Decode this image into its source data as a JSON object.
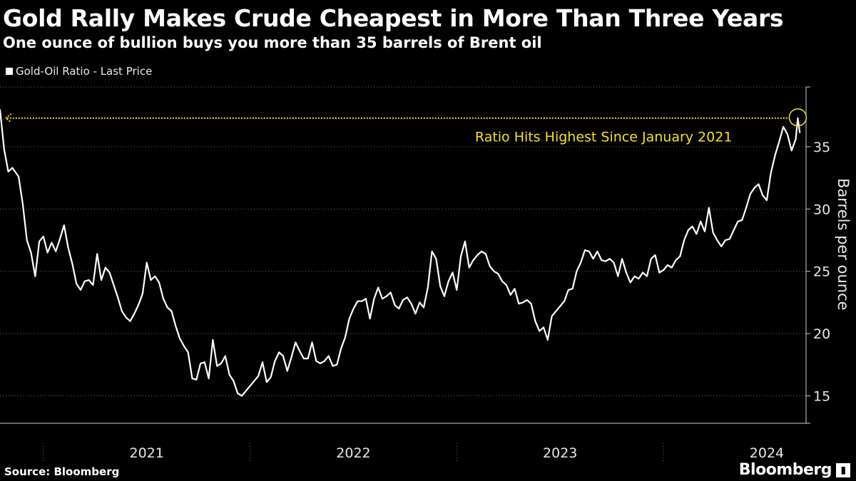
{
  "header": {
    "title": "Gold Rally Makes Crude Cheapest in More Than Three Years",
    "subtitle": "One ounce of bullion buys you more than 35 barrels of Brent oil"
  },
  "legend": {
    "label": "Gold-Oil Ratio - Last Price"
  },
  "footer": {
    "source": "Source: Bloomberg",
    "brand": "Bloomberg"
  },
  "colors": {
    "line": "#ffffff",
    "accent": "#f5e11c",
    "background": "#000000"
  },
  "chart_data": {
    "type": "line",
    "title": "Gold Rally Makes Crude Cheapest in More Than Three Years",
    "subtitle": "One ounce of bullion buys you more than 35 barrels of Brent oil",
    "xlabel": "",
    "ylabel": "Barrels per ounce",
    "ylim": [
      12.8,
      39.8
    ],
    "xlim": [
      2020.29,
      2024.19
    ],
    "yticks": [
      15,
      20,
      25,
      30,
      35
    ],
    "xtick_labels": [
      {
        "label": "2021",
        "at": 2021.0
      },
      {
        "label": "2022",
        "at": 2022.0
      },
      {
        "label": "2023",
        "at": 2023.0
      },
      {
        "label": "2024",
        "at": 2024.0
      }
    ],
    "year_boundaries": [
      2020.5,
      2021.5,
      2022.5,
      2023.5
    ],
    "legend": [
      "Gold-Oil Ratio - Last Price"
    ],
    "legend_position": "top-left",
    "grid": true,
    "annotation": {
      "text": "Ratio Hits Highest Since January 2021",
      "reference_value": 37.3,
      "reference_from_x": 2020.31,
      "highlight_x": 2024.15
    },
    "series": [
      {
        "name": "Gold-Oil Ratio - Last Price",
        "x": [
          2020.29,
          2020.31,
          2020.33,
          2020.35,
          2020.38,
          2020.4,
          2020.42,
          2020.44,
          2020.46,
          2020.48,
          2020.5,
          2020.52,
          2020.54,
          2020.56,
          2020.58,
          2020.6,
          2020.62,
          2020.64,
          2020.66,
          2020.68,
          2020.7,
          2020.72,
          2020.74,
          2020.76,
          2020.78,
          2020.8,
          2020.82,
          2020.84,
          2020.86,
          2020.88,
          2020.9,
          2020.92,
          2020.94,
          2020.96,
          2020.98,
          2021.0,
          2021.02,
          2021.04,
          2021.06,
          2021.08,
          2021.1,
          2021.12,
          2021.14,
          2021.16,
          2021.18,
          2021.2,
          2021.22,
          2021.24,
          2021.26,
          2021.28,
          2021.3,
          2021.32,
          2021.34,
          2021.36,
          2021.38,
          2021.4,
          2021.42,
          2021.44,
          2021.46,
          2021.48,
          2021.5,
          2021.52,
          2021.54,
          2021.56,
          2021.58,
          2021.6,
          2021.62,
          2021.64,
          2021.66,
          2021.68,
          2021.7,
          2021.72,
          2021.74,
          2021.76,
          2021.78,
          2021.8,
          2021.82,
          2021.84,
          2021.86,
          2021.88,
          2021.9,
          2021.92,
          2021.94,
          2021.96,
          2021.98,
          2022.0,
          2022.02,
          2022.04,
          2022.06,
          2022.08,
          2022.1,
          2022.12,
          2022.14,
          2022.16,
          2022.18,
          2022.2,
          2022.22,
          2022.24,
          2022.26,
          2022.28,
          2022.3,
          2022.32,
          2022.34,
          2022.36,
          2022.38,
          2022.4,
          2022.42,
          2022.44,
          2022.46,
          2022.48,
          2022.5,
          2022.52,
          2022.54,
          2022.56,
          2022.58,
          2022.6,
          2022.62,
          2022.64,
          2022.66,
          2022.68,
          2022.7,
          2022.72,
          2022.74,
          2022.76,
          2022.78,
          2022.8,
          2022.82,
          2022.84,
          2022.86,
          2022.88,
          2022.9,
          2022.92,
          2022.94,
          2022.96,
          2022.98,
          2023.0,
          2023.02,
          2023.04,
          2023.06,
          2023.08,
          2023.1,
          2023.12,
          2023.14,
          2023.16,
          2023.18,
          2023.2,
          2023.22,
          2023.24,
          2023.26,
          2023.28,
          2023.3,
          2023.32,
          2023.34,
          2023.36,
          2023.38,
          2023.4,
          2023.42,
          2023.44,
          2023.46,
          2023.48,
          2023.5,
          2023.52,
          2023.54,
          2023.56,
          2023.58,
          2023.6,
          2023.62,
          2023.64,
          2023.66,
          2023.68,
          2023.7,
          2023.72,
          2023.74,
          2023.76,
          2023.78,
          2023.8,
          2023.82,
          2023.84,
          2023.86,
          2023.88,
          2023.9,
          2023.92,
          2023.94,
          2023.96,
          2023.98,
          2024.0,
          2024.02,
          2024.04,
          2024.06,
          2024.08,
          2024.1,
          2024.12,
          2024.14,
          2024.15,
          2024.16
        ],
        "values": [
          38.0,
          34.8,
          33.0,
          33.3,
          32.6,
          30.4,
          27.5,
          26.5,
          24.6,
          27.4,
          27.8,
          26.5,
          27.3,
          26.6,
          27.6,
          28.7,
          26.9,
          25.6,
          24.0,
          23.5,
          24.2,
          24.3,
          23.9,
          26.4,
          24.3,
          25.3,
          24.9,
          23.9,
          22.9,
          21.8,
          21.3,
          21.0,
          21.6,
          22.3,
          23.2,
          25.7,
          24.3,
          24.6,
          24.1,
          22.8,
          22.1,
          21.8,
          20.6,
          19.6,
          19.0,
          18.5,
          16.4,
          16.3,
          17.6,
          17.7,
          16.4,
          19.5,
          17.4,
          17.6,
          18.2,
          16.7,
          16.2,
          15.2,
          15.0,
          15.4,
          15.8,
          16.2,
          16.6,
          17.7,
          16.1,
          16.5,
          17.8,
          18.5,
          18.2,
          17.0,
          18.1,
          19.3,
          18.6,
          18.0,
          18.0,
          19.3,
          17.8,
          17.6,
          17.8,
          18.2,
          17.4,
          17.5,
          18.8,
          19.7,
          21.2,
          22.0,
          22.6,
          22.6,
          22.8,
          21.2,
          22.8,
          23.7,
          22.8,
          23.0,
          23.3,
          22.3,
          22.0,
          22.7,
          22.9,
          22.4,
          21.6,
          22.5,
          22.1,
          23.7,
          26.6,
          26.0,
          23.8,
          23.0,
          24.2,
          24.9,
          23.5,
          26.2,
          27.4,
          25.3,
          25.9,
          26.3,
          26.6,
          26.4,
          25.4,
          25.0,
          24.8,
          24.2,
          23.9,
          23.1,
          23.6,
          22.4,
          22.5,
          22.7,
          22.4,
          21.0,
          20.2,
          20.5,
          19.5,
          21.4,
          21.8,
          22.2,
          22.6,
          23.5,
          23.6,
          25.0,
          25.7,
          26.7,
          26.6,
          26.0,
          26.6,
          25.9,
          25.8,
          26.0,
          25.7,
          24.6,
          26.0,
          24.9,
          24.1,
          24.6,
          24.4,
          24.9,
          24.6,
          26.0,
          26.3,
          24.9,
          25.1,
          25.5,
          25.3,
          25.9,
          26.2,
          27.5,
          28.3,
          28.6,
          28.0,
          29.0,
          28.2,
          30.1,
          28.1,
          27.5,
          27.0,
          27.5,
          27.6,
          28.3,
          29.0,
          29.1,
          30.1,
          31.2,
          31.7,
          32.0,
          31.1,
          30.7,
          32.9,
          34.3,
          35.4,
          36.6,
          36.0,
          34.7,
          35.6,
          37.3,
          36.1
        ]
      }
    ]
  }
}
